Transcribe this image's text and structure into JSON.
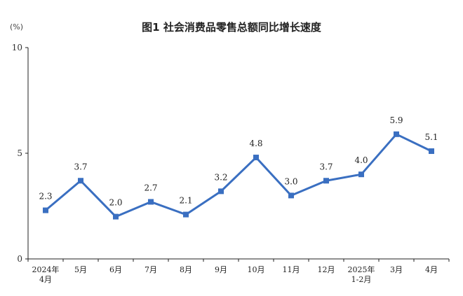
{
  "chart_data": {
    "type": "line",
    "title": "图1  社会消费品零售总额同比增长速度",
    "unit_label": "(%)",
    "xlabel": "",
    "ylabel": "",
    "ylim": [
      0,
      10
    ],
    "yticks": [
      "0",
      "5",
      "10"
    ],
    "categories": [
      [
        "2024年",
        "4月"
      ],
      [
        "5月"
      ],
      [
        "6月"
      ],
      [
        "7月"
      ],
      [
        "8月"
      ],
      [
        "9月"
      ],
      [
        "10月"
      ],
      [
        "11月"
      ],
      [
        "12月"
      ],
      [
        "2025年",
        "1-2月"
      ],
      [
        "3月"
      ],
      [
        "4月"
      ]
    ],
    "values": [
      2.3,
      3.7,
      2.0,
      2.7,
      2.1,
      3.2,
      4.8,
      3.0,
      3.7,
      4.0,
      5.9,
      5.1
    ],
    "value_labels": [
      "2.3",
      "3.7",
      "2.0",
      "2.7",
      "2.1",
      "3.2",
      "4.8",
      "3.0",
      "3.7",
      "4.0",
      "5.9",
      "5.1"
    ],
    "grid": false,
    "legend": "none",
    "color": "#3a6fc1"
  }
}
